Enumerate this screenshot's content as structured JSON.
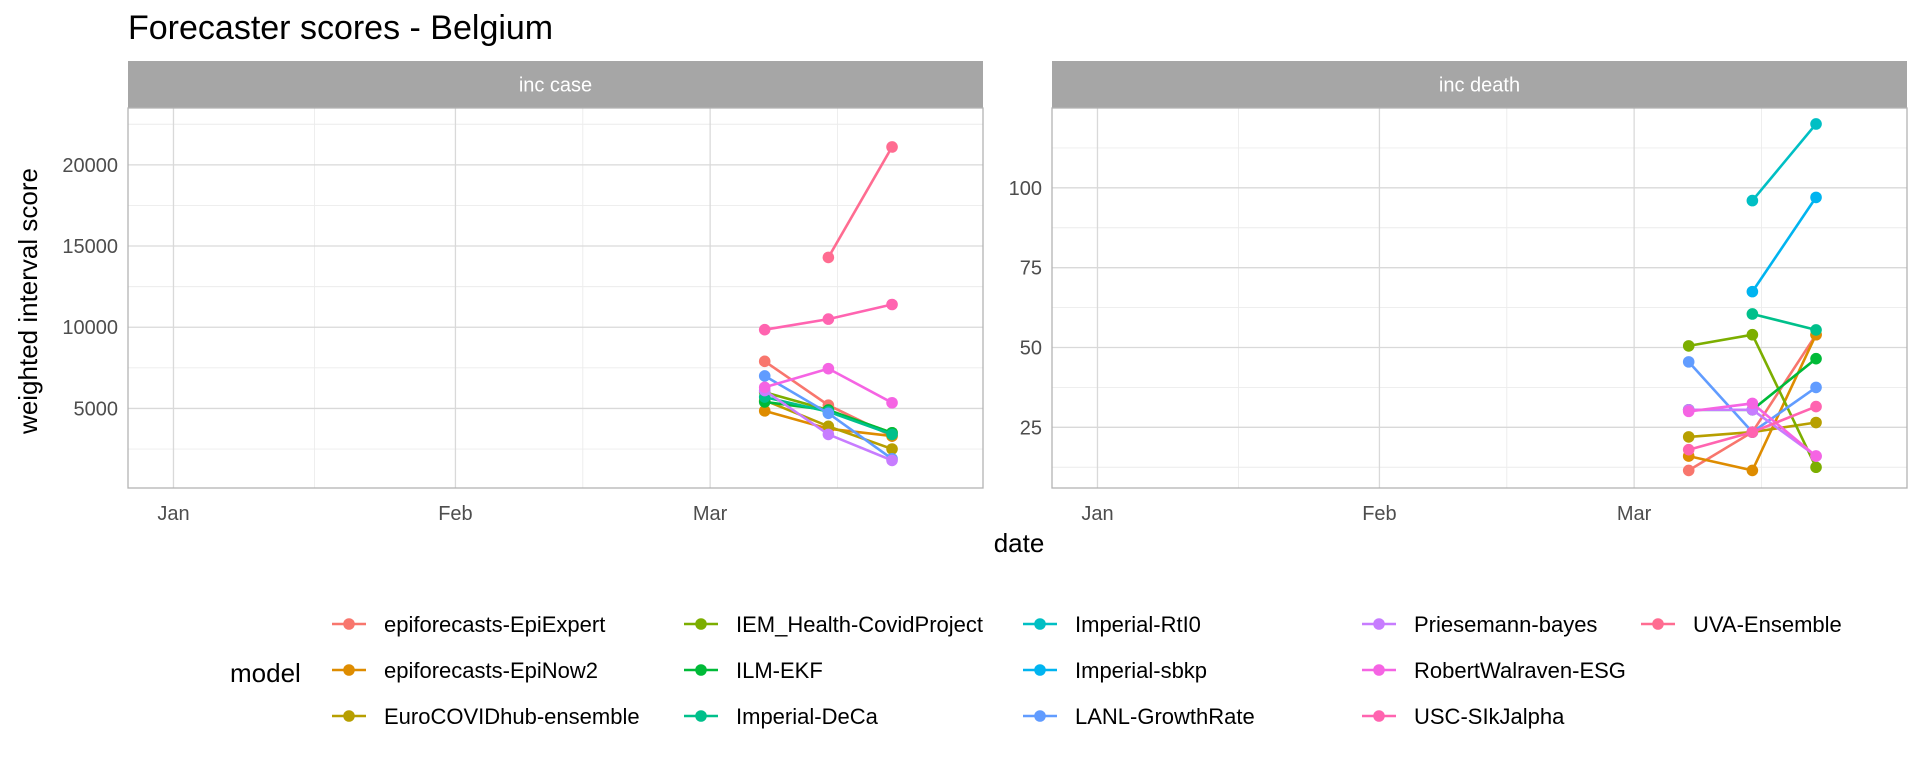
{
  "chart_data": {
    "type": "line",
    "title": "Forecaster scores - Belgium",
    "xlabel": "date",
    "ylabel": "weighted interval score",
    "legend_title": "model",
    "legend_position": "bottom",
    "grid": true,
    "x_axis": {
      "type": "date",
      "range": [
        "2021-12-27",
        "2022-03-31"
      ],
      "ticks": [
        {
          "date": "2022-01-01",
          "label": "Jan"
        },
        {
          "date": "2022-02-01",
          "label": "Feb"
        },
        {
          "date": "2022-03-01",
          "label": "Mar"
        }
      ]
    },
    "dates": [
      "2022-03-07",
      "2022-03-14",
      "2022-03-21"
    ],
    "models": [
      {
        "name": "epiforecasts-EpiExpert",
        "color": "#F8766D"
      },
      {
        "name": "epiforecasts-EpiNow2",
        "color": "#DE8C00"
      },
      {
        "name": "EuroCOVIDhub-ensemble",
        "color": "#B79F00"
      },
      {
        "name": "IEM_Health-CovidProject",
        "color": "#7CAE00"
      },
      {
        "name": "ILM-EKF",
        "color": "#00BA38"
      },
      {
        "name": "Imperial-DeCa",
        "color": "#00C08B"
      },
      {
        "name": "Imperial-RtI0",
        "color": "#00BFC4"
      },
      {
        "name": "Imperial-sbkp",
        "color": "#00B4F0"
      },
      {
        "name": "LANL-GrowthRate",
        "color": "#619CFF"
      },
      {
        "name": "Priesemann-bayes",
        "color": "#C77CFF"
      },
      {
        "name": "RobertWalraven-ESG",
        "color": "#F564E3"
      },
      {
        "name": "USC-SIkJalpha",
        "color": "#FF64B0"
      },
      {
        "name": "UVA-Ensemble",
        "color": "#FF6C91"
      }
    ],
    "panels": [
      {
        "label": "inc case",
        "ylim": [
          100,
          23500
        ],
        "yticks": [
          5000,
          10000,
          15000,
          20000
        ],
        "ytick_labels": [
          "5000",
          "10000",
          "15000",
          "20000"
        ],
        "series": [
          {
            "name": "epiforecasts-EpiExpert",
            "values": [
              7900,
              5200,
              3300
            ]
          },
          {
            "name": "epiforecasts-EpiNow2",
            "values": [
              4850,
              3750,
              3300
            ]
          },
          {
            "name": "EuroCOVIDhub-ensemble",
            "values": [
              5500,
              3900,
              2500
            ]
          },
          {
            "name": "IEM_Health-CovidProject",
            "values": [
              6000,
              4900,
              3500
            ]
          },
          {
            "name": "ILM-EKF",
            "values": [
              5400,
              4900,
              3500
            ]
          },
          {
            "name": "Imperial-DeCa",
            "values": [
              5700,
              4800,
              3400
            ]
          },
          {
            "name": "LANL-GrowthRate",
            "values": [
              7000,
              4700,
              1900
            ]
          },
          {
            "name": "Priesemann-bayes",
            "values": [
              6100,
              3400,
              1800
            ]
          },
          {
            "name": "RobertWalraven-ESG",
            "values": [
              6300,
              7450,
              5350
            ]
          },
          {
            "name": "USC-SIkJalpha",
            "values": [
              9850,
              10500,
              11400
            ]
          },
          {
            "name": "UVA-Ensemble",
            "values": [
              null,
              14300,
              21100
            ]
          }
        ]
      },
      {
        "label": "inc death",
        "ylim": [
          6,
          125
        ],
        "yticks": [
          25,
          50,
          75,
          100
        ],
        "ytick_labels": [
          "25",
          "50",
          "75",
          "100"
        ],
        "series": [
          {
            "name": "epiforecasts-EpiExpert",
            "values": [
              11.5,
              23.5,
              54
            ]
          },
          {
            "name": "epiforecasts-EpiNow2",
            "values": [
              16,
              11.5,
              54
            ]
          },
          {
            "name": "EuroCOVIDhub-ensemble",
            "values": [
              22,
              23.5,
              26.5
            ]
          },
          {
            "name": "IEM_Health-CovidProject",
            "values": [
              50.5,
              54,
              12.5
            ]
          },
          {
            "name": "ILM-EKF",
            "values": [
              30.5,
              30.5,
              46.5
            ]
          },
          {
            "name": "Imperial-DeCa",
            "values": [
              null,
              60.5,
              55.5
            ]
          },
          {
            "name": "Imperial-RtI0",
            "values": [
              null,
              96,
              120
            ]
          },
          {
            "name": "Imperial-sbkp",
            "values": [
              null,
              67.5,
              97
            ]
          },
          {
            "name": "LANL-GrowthRate",
            "values": [
              45.5,
              23.5,
              37.5
            ]
          },
          {
            "name": "Priesemann-bayes",
            "values": [
              30.5,
              30.5,
              16
            ]
          },
          {
            "name": "RobertWalraven-ESG",
            "values": [
              30,
              32.5,
              16
            ]
          },
          {
            "name": "USC-SIkJalpha",
            "values": [
              18,
              23.5,
              31.5
            ]
          }
        ]
      }
    ]
  }
}
